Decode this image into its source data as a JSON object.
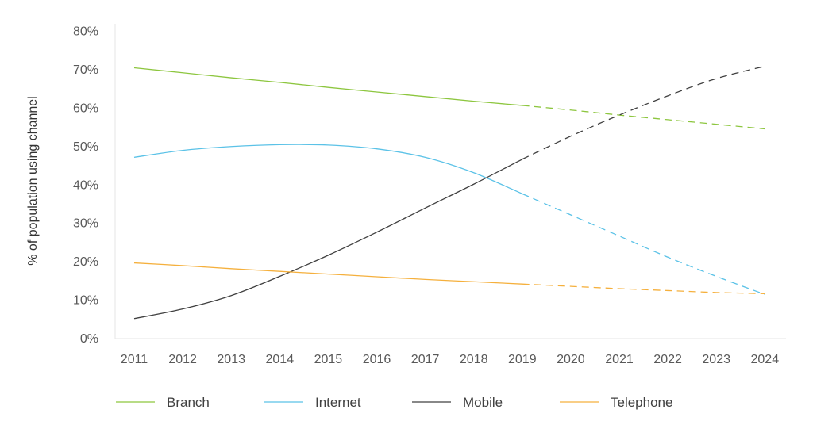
{
  "chart_data": {
    "type": "line",
    "title": "",
    "xlabel": "",
    "ylabel": "% of population using channel",
    "ylim": [
      0,
      80
    ],
    "y_ticks": [
      0,
      10,
      20,
      30,
      40,
      50,
      60,
      70,
      80
    ],
    "y_tick_labels": [
      "0%",
      "10%",
      "20%",
      "30%",
      "40%",
      "50%",
      "60%",
      "70%",
      "80%"
    ],
    "categories": [
      "2011",
      "2012",
      "2013",
      "2014",
      "2015",
      "2016",
      "2017",
      "2018",
      "2019",
      "2020",
      "2021",
      "2022",
      "2023",
      "2024"
    ],
    "projection_starts_at": "2019",
    "grid": false,
    "legend_position": "bottom",
    "series": [
      {
        "name": "Branch",
        "color": "#8DC63F",
        "values": [
          70.3,
          69.0,
          67.7,
          66.5,
          65.2,
          64.0,
          62.8,
          61.6,
          60.5,
          59.3,
          58.0,
          56.8,
          55.6,
          54.4
        ]
      },
      {
        "name": "Internet",
        "color": "#5BC2E7",
        "values": [
          47.0,
          48.8,
          49.8,
          50.3,
          50.2,
          49.2,
          47.0,
          43.0,
          37.5,
          32.0,
          26.5,
          21.0,
          16.0,
          11.3
        ]
      },
      {
        "name": "Mobile",
        "color": "#404040",
        "values": [
          5.0,
          7.5,
          11.0,
          16.0,
          21.5,
          27.5,
          33.8,
          40.0,
          46.5,
          52.5,
          58.0,
          63.0,
          67.5,
          70.7
        ]
      },
      {
        "name": "Telephone",
        "color": "#F5B03D",
        "values": [
          19.5,
          18.8,
          18.0,
          17.3,
          16.6,
          15.9,
          15.2,
          14.6,
          14.0,
          13.4,
          12.8,
          12.3,
          11.8,
          11.5
        ]
      }
    ]
  }
}
